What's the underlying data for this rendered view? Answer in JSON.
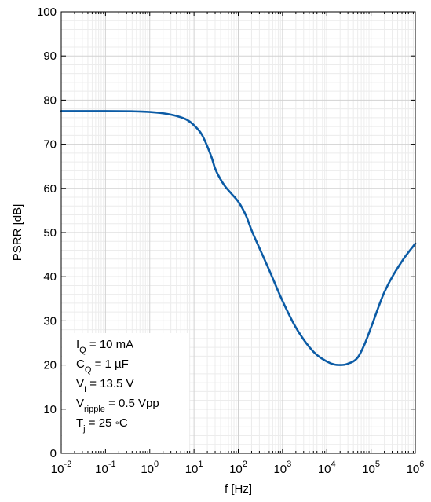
{
  "chart_data": {
    "type": "line",
    "title": "",
    "xlabel": "f [Hz]",
    "ylabel": "PSRR [dB]",
    "xscale": "log",
    "xlim": [
      0.01,
      1000000
    ],
    "ylim": [
      0,
      100
    ],
    "grid": true,
    "x_major_ticks": [
      {
        "base": "10",
        "exp": "-2",
        "value": 0.01
      },
      {
        "base": "10",
        "exp": "-1",
        "value": 0.1
      },
      {
        "base": "10",
        "exp": "0",
        "value": 1
      },
      {
        "base": "10",
        "exp": "1",
        "value": 10
      },
      {
        "base": "10",
        "exp": "2",
        "value": 100
      },
      {
        "base": "10",
        "exp": "3",
        "value": 1000
      },
      {
        "base": "10",
        "exp": "4",
        "value": 10000
      },
      {
        "base": "10",
        "exp": "5",
        "value": 100000
      },
      {
        "base": "10",
        "exp": "6",
        "value": 1000000
      }
    ],
    "y_ticks": [
      "0",
      "10",
      "20",
      "30",
      "40",
      "50",
      "60",
      "70",
      "80",
      "90",
      "100"
    ],
    "series": [
      {
        "color": "#0b5ba5",
        "x": [
          0.01,
          0.1,
          1,
          2,
          4,
          7,
          10,
          15,
          20,
          25,
          30,
          40,
          50,
          70,
          100,
          150,
          200,
          300,
          500,
          1000,
          2000,
          5000,
          10000,
          15000,
          20000,
          30000,
          50000,
          70000,
          100000,
          200000,
          500000,
          1000000
        ],
        "y": [
          77.5,
          77.5,
          77.3,
          77.0,
          76.4,
          75.5,
          74.3,
          72.2,
          69.5,
          67.0,
          64.5,
          62.0,
          60.5,
          58.8,
          57.0,
          53.8,
          50.5,
          46.5,
          41.5,
          34.5,
          28.5,
          23.0,
          20.8,
          20.1,
          20.0,
          20.3,
          21.7,
          24.5,
          28.5,
          36.5,
          43.5,
          47.5
        ]
      }
    ],
    "annotations": [
      {
        "main": "I",
        "sub": "Q",
        "rest": " = 10 mA"
      },
      {
        "main": "C",
        "sub": "Q",
        "rest": " = 1 µF"
      },
      {
        "main": "V",
        "sub": "I",
        "rest": " = 13.5 V"
      },
      {
        "main": "V",
        "sub": "ripple",
        "rest": " = 0.5 Vpp"
      },
      {
        "main": "T",
        "sub": "j",
        "rest": " = 25 ◦C"
      }
    ],
    "annotation_placement": "bottom-left"
  }
}
